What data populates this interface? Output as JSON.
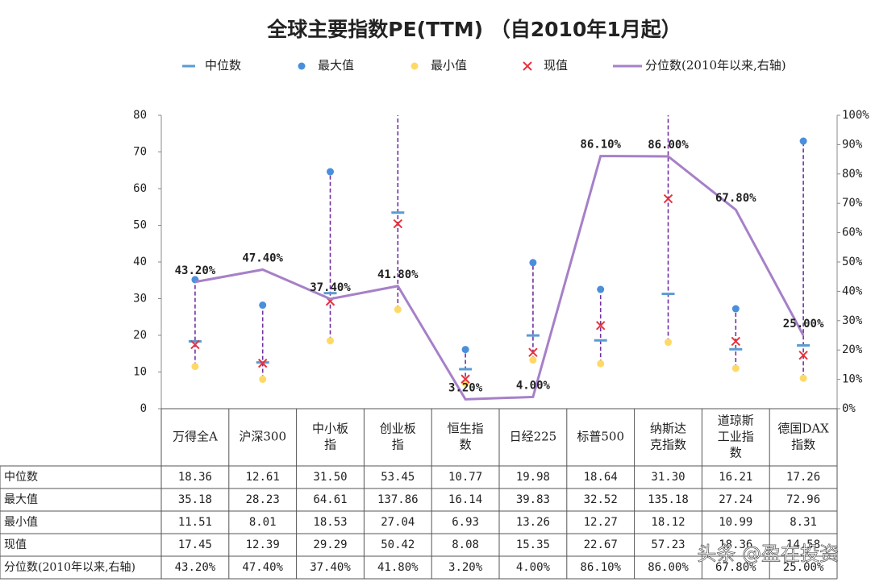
{
  "chart_data": {
    "type": "range-table",
    "title": "全球主要指数PE(TTM) （自2010年1月起）",
    "categories": [
      "万得全A",
      "沪深300",
      "中小板指",
      "创业板指",
      "恒生指数",
      "日经225",
      "标普500",
      "纳斯达克指数",
      "道琼斯工业指数",
      "德国DAX指数"
    ],
    "series": [
      {
        "name": "中位数",
        "role": "median",
        "color": "#5b9bd5",
        "values": [
          18.36,
          12.61,
          31.5,
          53.45,
          10.77,
          19.98,
          18.64,
          31.3,
          16.21,
          17.26
        ],
        "value_labels": [
          "18.36",
          "12.61",
          "31.50",
          "53.45",
          "10.77",
          "19.98",
          "18.64",
          "31.30",
          "16.21",
          "17.26"
        ]
      },
      {
        "name": "最大值",
        "role": "max",
        "color": "#4a8fdc",
        "values": [
          35.18,
          28.23,
          64.61,
          137.86,
          16.14,
          39.83,
          32.52,
          135.18,
          27.24,
          72.96
        ],
        "value_labels": [
          "35.18",
          "28.23",
          "64.61",
          "137.86",
          "16.14",
          "39.83",
          "32.52",
          "135.18",
          "27.24",
          "72.96"
        ]
      },
      {
        "name": "最小值",
        "role": "min",
        "color": "#ffd966",
        "values": [
          11.51,
          8.01,
          18.53,
          27.04,
          6.93,
          13.26,
          12.27,
          18.12,
          10.99,
          8.31
        ],
        "value_labels": [
          "11.51",
          "8.01",
          "18.53",
          "27.04",
          "6.93",
          "13.26",
          "12.27",
          "18.12",
          "10.99",
          "8.31"
        ]
      },
      {
        "name": "现值",
        "role": "current",
        "color": "#e8323c",
        "values": [
          17.45,
          12.39,
          29.29,
          50.42,
          8.08,
          15.35,
          22.67,
          57.23,
          18.36,
          14.58
        ],
        "value_labels": [
          "17.45",
          "12.39",
          "29.29",
          "50.42",
          "8.08",
          "15.35",
          "22.67",
          "57.23",
          "18.36",
          "14.58"
        ]
      },
      {
        "name": "分位数(2010年以来,右轴)",
        "role": "line",
        "axis": "y2",
        "color": "#a680c8",
        "values": [
          43.2,
          47.4,
          37.4,
          41.8,
          3.2,
          4.0,
          86.1,
          86.0,
          67.8,
          25.0
        ],
        "value_labels": [
          "43.20%",
          "47.40%",
          "37.40%",
          "41.80%",
          "3.20%",
          "4.00%",
          "86.10%",
          "86.00%",
          "67.80%",
          "25.00%"
        ]
      }
    ],
    "range_color": "#7030a0",
    "ylim": [
      0,
      80
    ],
    "yticks": [
      0,
      10,
      20,
      30,
      40,
      50,
      60,
      70,
      80
    ],
    "y2lim": [
      0,
      100
    ],
    "y2ticks": [
      {
        "value": 0,
        "label": "0%"
      },
      {
        "value": 10,
        "label": "10%"
      },
      {
        "value": 20,
        "label": "20%"
      },
      {
        "value": 30,
        "label": "30%"
      },
      {
        "value": 40,
        "label": "40%"
      },
      {
        "value": 50,
        "label": "50%"
      },
      {
        "value": 60,
        "label": "60%"
      },
      {
        "value": 70,
        "label": "70%"
      },
      {
        "value": 80,
        "label": "80%"
      },
      {
        "value": 90,
        "label": "90%"
      },
      {
        "value": 100,
        "label": "100%"
      }
    ],
    "legend": "top",
    "watermark": "头条 @盈在投资"
  }
}
